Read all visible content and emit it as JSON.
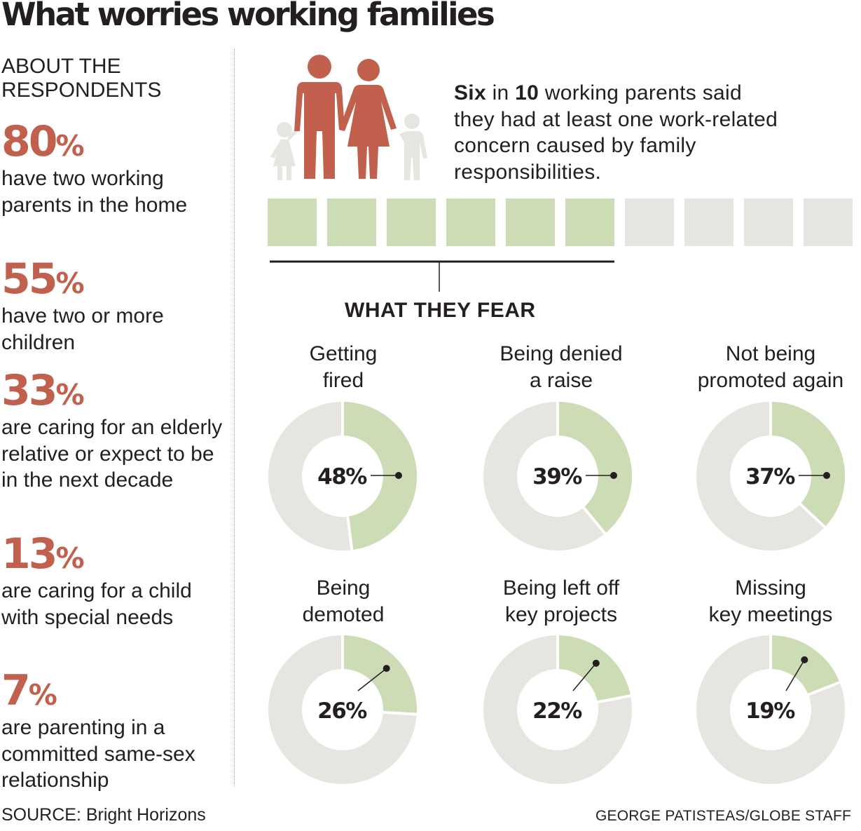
{
  "title": "What worries working families",
  "respondents": {
    "heading": "ABOUT THE\nRESPONDENTS",
    "stats": [
      {
        "value": "80",
        "unit": "%",
        "text": "have two working parents in the home"
      },
      {
        "value": "55",
        "unit": "%",
        "text": "have two or more children"
      },
      {
        "value": "33",
        "unit": "%",
        "text": "are caring for an elderly relative or expect to be in the next decade"
      },
      {
        "value": "13",
        "unit": "%",
        "text": "are caring for a child with special needs"
      },
      {
        "value": "7",
        "unit": "%",
        "text": "are parenting in a committed same-sex relationship"
      }
    ]
  },
  "headline": {
    "part1": "Six",
    "part2": " in ",
    "part3": "10",
    "part4": " working parents said they had at least one work-related concern caused by family responsibilities."
  },
  "colors": {
    "accent": "#c0604d",
    "filled": "#ccdcb4",
    "empty": "#e6e5df",
    "child": "#e6e5df",
    "text": "#231f20"
  },
  "fear_title": "WHAT THEY FEAR",
  "chart_data": {
    "type": "pie",
    "waffle": {
      "filled": 6,
      "total": 10
    },
    "donuts": [
      {
        "label": "Getting\nfired",
        "value": 48,
        "display": "48%"
      },
      {
        "label": "Being denied\na raise",
        "value": 39,
        "display": "39%"
      },
      {
        "label": "Not being\npromoted again",
        "value": 37,
        "display": "37%"
      },
      {
        "label": "Being\ndemoted",
        "value": 26,
        "display": "26%"
      },
      {
        "label": "Being left off\nkey projects",
        "value": 22,
        "display": "22%"
      },
      {
        "label": "Missing\nkey meetings",
        "value": 19,
        "display": "19%"
      }
    ]
  },
  "footer": {
    "source": "SOURCE: Bright Horizons",
    "credit": "GEORGE PATISTEAS/GLOBE STAFF"
  }
}
